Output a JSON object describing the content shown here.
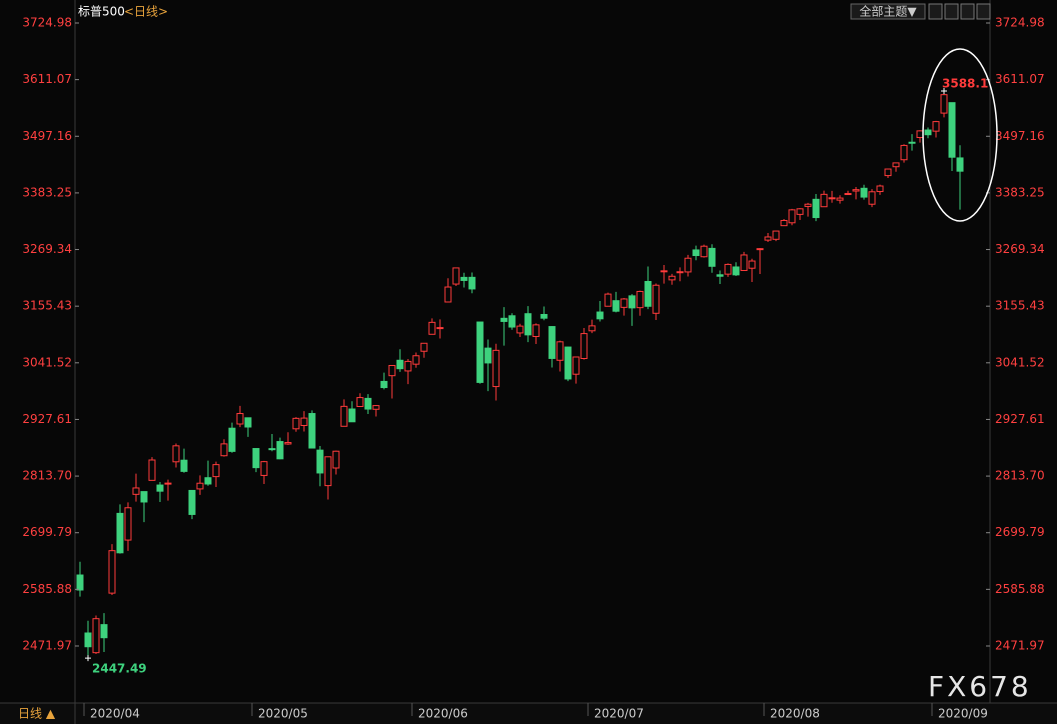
{
  "chart_data": {
    "type": "candlestick",
    "title": "标普500",
    "subtitle": "<日线>",
    "up_color": "#ff3b3b",
    "down_color": "#3ed27e",
    "categories": [
      null,
      "2020/04",
      null,
      null,
      null,
      null,
      null,
      null,
      null,
      null,
      null,
      null,
      null,
      null,
      null,
      null,
      null,
      null,
      null,
      null,
      null,
      null,
      "2020/05",
      null,
      null,
      null,
      null,
      null,
      null,
      null,
      null,
      null,
      null,
      null,
      null,
      null,
      null,
      null,
      null,
      null,
      null,
      null,
      "2020/06",
      null,
      null,
      null,
      null,
      null,
      null,
      null,
      null,
      null,
      null,
      null,
      null,
      null,
      null,
      null,
      null,
      null,
      null,
      null,
      null,
      null,
      "2020/07",
      null,
      null,
      null,
      null,
      null,
      null,
      null,
      null,
      null,
      null,
      null,
      null,
      null,
      null,
      null,
      null,
      null,
      null,
      null,
      null,
      null,
      "2020/08",
      null,
      null,
      null,
      null,
      null,
      null,
      null,
      null,
      null,
      null,
      null,
      null,
      null,
      null,
      null,
      null,
      null,
      null,
      null,
      null,
      "2020/09",
      null,
      null,
      null
    ],
    "open": [
      2614.69,
      2498.08,
      2458.54,
      2514.92,
      2578.28,
      2738.65,
      2685,
      2776.99,
      2782.46,
      2805.1,
      2795.64,
      2799.34,
      2842.43,
      2845.62,
      2784.81,
      2787.89,
      2810.42,
      2812.64,
      2854.65,
      2909.96,
      2918.46,
      2930.91,
      2869.09,
      2815.01,
      2868.88,
      2883.14,
      2878.26,
      2908.83,
      2915.46,
      2939.5,
      2865.86,
      2794.54,
      2829.95,
      2913.86,
      2948.59,
      2953.63,
      2969.95,
      2948.05,
      3004.08,
      3015.65,
      3046.61,
      3025.17,
      3038.78,
      3064.78,
      3098.9,
      3111.56,
      3163.84,
      3199.92,
      3213.32,
      3213.42,
      3123.53,
      3071.04,
      2993.76,
      3131,
      3136.13,
      3101.64,
      3140.29,
      3094.42,
      3138.7,
      3114.4,
      3046.6,
      3073.2,
      3018.59,
      3050.2,
      3105.92,
      3143.64,
      3155.29,
      3166.44,
      3153.07,
      3176.17,
      3152.47,
      3205.08,
      3141.11,
      3225.98,
      3208.36,
      3224.21,
      3224.29,
      3268.52,
      3254.86,
      3271.64,
      3218.58,
      3219.84,
      3234.27,
      3227.22,
      3231.76,
      3270.45,
      3288.26,
      3289.92,
      3317.37,
      3323.17,
      3340.05,
      3356.04,
      3370.34,
      3355.46,
      3372.95,
      3368.66,
      3380.86,
      3387.04,
      3392.51,
      3360.48,
      3386.01,
      3418.09,
      3435.95,
      3449.97,
      3485.14,
      3494.69,
      3509.73,
      3507.44,
      3543.76,
      3564.74,
      3453.6
    ],
    "high": [
      2641.39,
      2522.75,
      2533.22,
      2538.18,
      2676.85,
      2756.89,
      2760.75,
      2818.57,
      2782.46,
      2851.85,
      2801.88,
      2806.51,
      2879.22,
      2868.98,
      2785.54,
      2815.1,
      2844.9,
      2842.71,
      2887.72,
      2921.15,
      2954.86,
      2930.91,
      2869.09,
      2844.24,
      2898.23,
      2891.11,
      2901.92,
      2932.16,
      2944.25,
      2945.82,
      2874.14,
      2852.8,
      2865.01,
      2968.09,
      2964.21,
      2980.29,
      2978.5,
      2956.76,
      3021.72,
      3036.25,
      3068.67,
      3049.17,
      3062.18,
      3081.07,
      3130.94,
      3128.91,
      3211.72,
      3233.13,
      3222.71,
      3223.27,
      3123.53,
      3088.42,
      3079.76,
      3153.45,
      3141.16,
      3120,
      3155.53,
      3120.92,
      3154.9,
      3115.01,
      3086.25,
      3073.73,
      3053.89,
      3111.51,
      3128.44,
      3165.81,
      3182.59,
      3184.15,
      3171.8,
      3179.78,
      3186.82,
      3235.32,
      3200.95,
      3238.28,
      3220.39,
      3233.52,
      3258.61,
      3277.29,
      3279.32,
      3279.99,
      3227.26,
      3241.43,
      3243.72,
      3264.74,
      3250.92,
      3272.17,
      3302.73,
      3306.84,
      3330.77,
      3351.03,
      3352.54,
      3363.29,
      3381.01,
      3387.89,
      3387.24,
      3378.51,
      3387.59,
      3395.06,
      3399.54,
      3390.8,
      3399.96,
      3432.09,
      3444.21,
      3481.07,
      3501.38,
      3509.23,
      3514.77,
      3528.03,
      3588.11,
      3564.85,
      3479.15
    ],
    "low": [
      2571.15,
      2447.49,
      2455.79,
      2459.96,
      2574.57,
      2657.67,
      2663.3,
      2762.36,
      2721.17,
      2805.1,
      2761.54,
      2764.32,
      2830.88,
      2820.43,
      2727.1,
      2775.95,
      2794.26,
      2791.76,
      2852.89,
      2860.71,
      2912.16,
      2892.47,
      2821.61,
      2797.85,
      2863.55,
      2847.65,
      2876.48,
      2902.88,
      2903.44,
      2869.59,
      2793.15,
      2766.64,
      2816.78,
      2913.86,
      2922.35,
      2953.63,
      2938.57,
      2933.59,
      2988.17,
      2969.75,
      3023.4,
      2998.61,
      3031.54,
      3051.64,
      3098.9,
      3090.41,
      3163.84,
      3196,
      3193.11,
      3181.49,
      2999.49,
      2984.47,
      2965.66,
      3076.06,
      3108.03,
      3093.51,
      3083.11,
      3079.39,
      3127.12,
      3032.13,
      3024.01,
      3004.63,
      2999.74,
      3047.83,
      3101.17,
      3124.52,
      3155.29,
      3142.93,
      3136.53,
      3115.7,
      3136.22,
      3149.43,
      3127.66,
      3200.76,
      3198.59,
      3205.65,
      3215.16,
      3247.77,
      3253.1,
      3222.66,
      3200.05,
      3214.25,
      3216.17,
      3227.22,
      3204.13,
      3220.26,
      3284.53,
      3286.37,
      3317.37,
      3318.14,
      3328.72,
      3335.44,
      3326.44,
      3355.46,
      3363.35,
      3361.64,
      3379.22,
      3370.15,
      3369.66,
      3354.69,
      3379.31,
      3413.13,
      3425.84,
      3444.15,
      3468.35,
      3484.32,
      3493.25,
      3494.6,
      3535.23,
      3427.41,
      3349.63
    ],
    "close": [
      2584.59,
      2470.5,
      2526.9,
      2488.65,
      2663.68,
      2659.41,
      2749.98,
      2789.82,
      2761.63,
      2846.06,
      2783.36,
      2799.55,
      2874.56,
      2823.16,
      2736.56,
      2799.31,
      2797.8,
      2836.74,
      2878.48,
      2863.39,
      2939.51,
      2912.43,
      2830.71,
      2842.74,
      2868.44,
      2848.42,
      2881.19,
      2929.8,
      2930.32,
      2870.12,
      2820,
      2852.5,
      2863.7,
      2953.91,
      2922.94,
      2971.61,
      2948.51,
      2955.45,
      2991.77,
      3036.13,
      3029.73,
      3044.31,
      3055.73,
      3080.82,
      3122.87,
      3112.35,
      3193.93,
      3232.39,
      3207.18,
      3190.14,
      3002.1,
      3041.31,
      3066.59,
      3124.74,
      3113.49,
      3115.34,
      3097.74,
      3117.86,
      3131.29,
      3050.33,
      3083.76,
      3009.05,
      3053.24,
      3100.29,
      3115.86,
      3130.01,
      3179.72,
      3145.32,
      3169.94,
      3152.05,
      3185.04,
      3155.22,
      3197.52,
      3226.56,
      3215.57,
      3224.73,
      3251.84,
      3257.3,
      3276.02,
      3235.66,
      3215.63,
      3239.41,
      3218.44,
      3258.44,
      3246.22,
      3271.12,
      3294.61,
      3306.51,
      3327.77,
      3349.16,
      3351.28,
      3360.47,
      3333.69,
      3380.35,
      3373.43,
      3372.85,
      3381.99,
      3389.78,
      3374.85,
      3385.51,
      3397.16,
      3431.28,
      3443.62,
      3478.73,
      3484.55,
      3508.01,
      3500.31,
      3526.65,
      3580.84,
      3455.06,
      3426.96
    ],
    "ylim": [
      2363.33,
      3751.13
    ],
    "yticks": [
      2471.97,
      2585.88,
      2699.79,
      {
        "value": 2813.7,
        "label": "2813.70"
      },
      2927.61,
      3041.52,
      3155.43,
      3269.34,
      3383.25,
      3497.16,
      3611.07,
      3724.98
    ],
    "grid": false
  },
  "ui": {
    "theme_button": "全部主题▼",
    "period_button": "日线 ▲",
    "watermark": "FX678"
  }
}
